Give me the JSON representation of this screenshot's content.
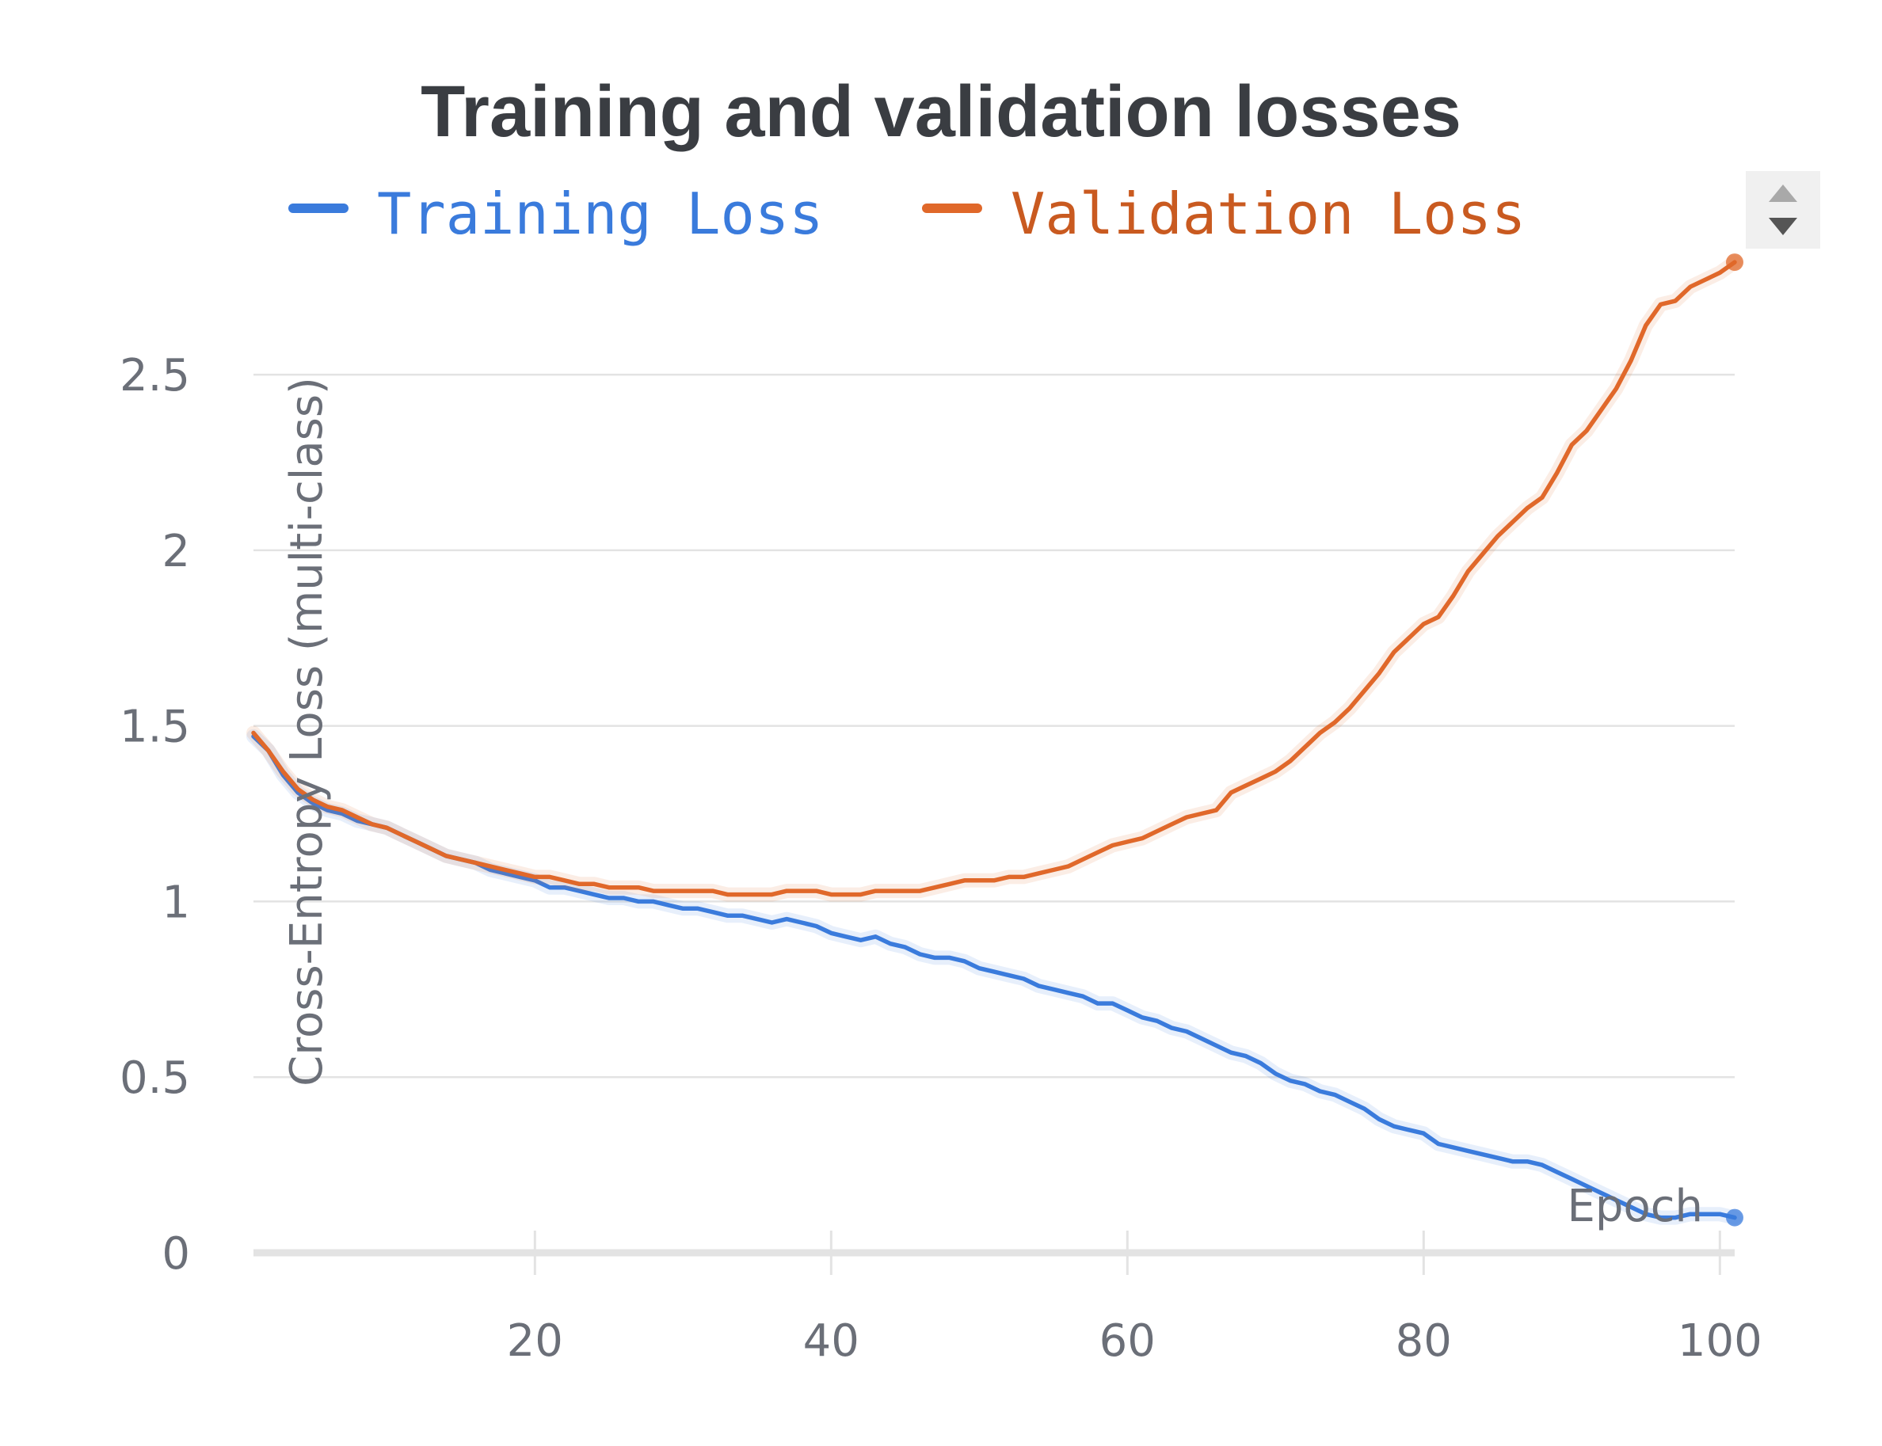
{
  "chart_data": {
    "type": "line",
    "title": "Training and validation losses",
    "xlabel": "Epoch",
    "ylabel": "Cross-Entropy Loss (multi-class)",
    "xlim": [
      1,
      101
    ],
    "ylim": [
      0,
      2.8
    ],
    "x_ticks": [
      20,
      40,
      60,
      80,
      100
    ],
    "y_ticks": [
      0,
      0.5,
      1,
      1.5,
      2,
      2.5
    ],
    "x_tick_labels": [
      "20",
      "40",
      "60",
      "80",
      "100"
    ],
    "y_tick_labels": [
      "0",
      "0.5",
      "1",
      "1.5",
      "2",
      "2.5"
    ],
    "grid": true,
    "legend_position": "top",
    "x_start": 1,
    "series": [
      {
        "name": "Training Loss",
        "color": "#3a7bdc",
        "values": [
          1.47,
          1.43,
          1.36,
          1.31,
          1.28,
          1.26,
          1.25,
          1.23,
          1.22,
          1.21,
          1.19,
          1.17,
          1.15,
          1.13,
          1.12,
          1.11,
          1.09,
          1.08,
          1.07,
          1.06,
          1.04,
          1.04,
          1.03,
          1.02,
          1.01,
          1.01,
          1.0,
          1.0,
          0.99,
          0.98,
          0.98,
          0.97,
          0.96,
          0.96,
          0.95,
          0.94,
          0.95,
          0.94,
          0.93,
          0.91,
          0.9,
          0.89,
          0.9,
          0.88,
          0.87,
          0.85,
          0.84,
          0.84,
          0.83,
          0.81,
          0.8,
          0.79,
          0.78,
          0.76,
          0.75,
          0.74,
          0.73,
          0.71,
          0.71,
          0.69,
          0.67,
          0.66,
          0.64,
          0.63,
          0.61,
          0.59,
          0.57,
          0.56,
          0.54,
          0.51,
          0.49,
          0.48,
          0.46,
          0.45,
          0.43,
          0.41,
          0.38,
          0.36,
          0.35,
          0.34,
          0.31,
          0.3,
          0.29,
          0.28,
          0.27,
          0.26,
          0.26,
          0.25,
          0.23,
          0.21,
          0.19,
          0.17,
          0.15,
          0.13,
          0.11,
          0.1,
          0.1,
          0.11,
          0.11,
          0.11,
          0.1
        ]
      },
      {
        "name": "Validation Loss",
        "color": "#e0682a",
        "values": [
          1.48,
          1.43,
          1.37,
          1.32,
          1.29,
          1.27,
          1.26,
          1.24,
          1.22,
          1.21,
          1.19,
          1.17,
          1.15,
          1.13,
          1.12,
          1.11,
          1.1,
          1.09,
          1.08,
          1.07,
          1.07,
          1.06,
          1.05,
          1.05,
          1.04,
          1.04,
          1.04,
          1.03,
          1.03,
          1.03,
          1.03,
          1.03,
          1.02,
          1.02,
          1.02,
          1.02,
          1.03,
          1.03,
          1.03,
          1.02,
          1.02,
          1.02,
          1.03,
          1.03,
          1.03,
          1.03,
          1.04,
          1.05,
          1.06,
          1.06,
          1.06,
          1.07,
          1.07,
          1.08,
          1.09,
          1.1,
          1.12,
          1.14,
          1.16,
          1.17,
          1.18,
          1.2,
          1.22,
          1.24,
          1.25,
          1.26,
          1.31,
          1.33,
          1.35,
          1.37,
          1.4,
          1.44,
          1.48,
          1.51,
          1.55,
          1.6,
          1.65,
          1.71,
          1.75,
          1.79,
          1.81,
          1.87,
          1.94,
          1.99,
          2.04,
          2.08,
          2.12,
          2.15,
          2.22,
          2.3,
          2.34,
          2.4,
          2.46,
          2.54,
          2.64,
          2.7,
          2.71,
          2.75,
          2.77,
          2.79,
          2.82
        ]
      }
    ]
  }
}
